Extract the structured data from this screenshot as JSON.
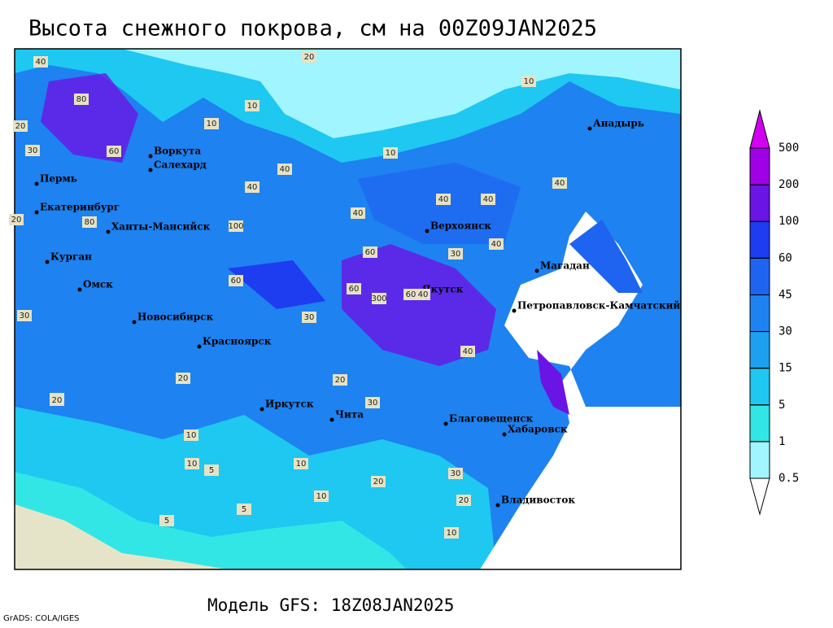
{
  "title": "Высота снежного покрова, см на 00Z09JAN2025",
  "model": "Модель GFS: 18Z08JAN2025",
  "credit": "GrADS: COLA/IGES",
  "colorbar": {
    "levels": [
      0.5,
      1,
      5,
      15,
      30,
      45,
      60,
      100,
      200,
      500
    ],
    "colors": [
      "#ffffff",
      "#a0f5ff",
      "#32e6e6",
      "#1ec8f0",
      "#1ea0f0",
      "#1e82f0",
      "#1e64f0",
      "#1e3cf0",
      "#6a14e6",
      "#a000e6",
      "#d200f0"
    ]
  },
  "cities": [
    "Анадырь",
    "Воркута",
    "Салехард",
    "Пермь",
    "Екатеринбург",
    "Ханты-Мансийск",
    "Курган",
    "Омск",
    "Новосибирск",
    "Красноярск",
    "Иркутск",
    "Чита",
    "Верхоянск",
    "Магадан",
    "Якутск",
    "Петропавловск-Камчатский",
    "Благовещенск",
    "Хабаровск",
    "Владивосток"
  ],
  "contour_labels": [
    40,
    80,
    60,
    30,
    20,
    20,
    10,
    20,
    10,
    10,
    40,
    40,
    40,
    60,
    40,
    80,
    300,
    60,
    40,
    30,
    40,
    10,
    30,
    20,
    20,
    10,
    10,
    5,
    5,
    10,
    20,
    30,
    20,
    10,
    60,
    40,
    100,
    60,
    20,
    30,
    5,
    20,
    30,
    10,
    40,
    40
  ]
}
